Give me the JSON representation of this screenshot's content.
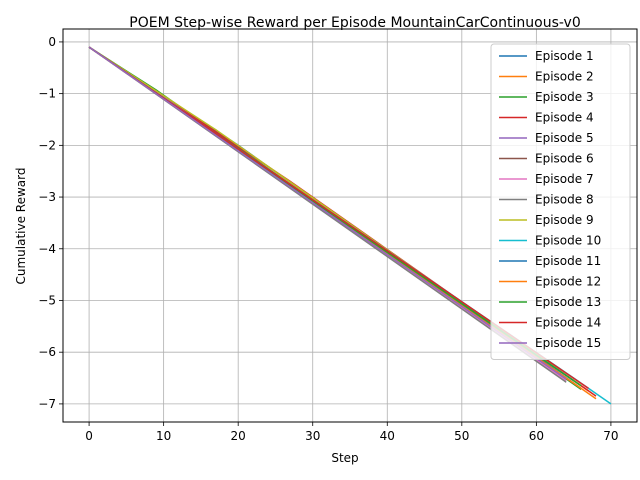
{
  "chart_data": {
    "type": "line",
    "title": "POEM Step-wise Reward per Episode MountainCarContinuous-v0",
    "xlabel": "Step",
    "ylabel": "Cumulative Reward",
    "xlim": [
      -3.5,
      73.5
    ],
    "ylim": [
      -7.35,
      0.25
    ],
    "xticks": [
      0,
      10,
      20,
      30,
      40,
      50,
      60,
      70
    ],
    "yticks": [
      0,
      -1,
      -2,
      -3,
      -4,
      -5,
      -6,
      -7
    ],
    "grid": true,
    "legend_position": "top-right",
    "series": [
      {
        "name": "Episode 1",
        "color": "#1f77b4",
        "x": [
          0,
          20,
          66
        ],
        "y": [
          -0.1,
          -2.0,
          -6.7
        ]
      },
      {
        "name": "Episode 2",
        "color": "#ff7f0e",
        "x": [
          0,
          25,
          67
        ],
        "y": [
          -0.1,
          -2.55,
          -6.75
        ]
      },
      {
        "name": "Episode 3",
        "color": "#2ca02c",
        "x": [
          0,
          9,
          66
        ],
        "y": [
          -0.1,
          -0.93,
          -6.72
        ]
      },
      {
        "name": "Episode 4",
        "color": "#d62728",
        "x": [
          0,
          27,
          68
        ],
        "y": [
          -0.1,
          -2.7,
          -6.85
        ]
      },
      {
        "name": "Episode 5",
        "color": "#9467bd",
        "x": [
          0,
          10,
          64
        ],
        "y": [
          -0.1,
          -1.07,
          -6.55
        ]
      },
      {
        "name": "Episode 6",
        "color": "#8c564b",
        "x": [
          0,
          65
        ],
        "y": [
          -0.1,
          -6.6
        ]
      },
      {
        "name": "Episode 7",
        "color": "#e377c2",
        "x": [
          0,
          64
        ],
        "y": [
          -0.1,
          -6.55
        ]
      },
      {
        "name": "Episode 8",
        "color": "#7f7f7f",
        "x": [
          0,
          64
        ],
        "y": [
          -0.1,
          -6.58
        ]
      },
      {
        "name": "Episode 9",
        "color": "#bcbd22",
        "x": [
          0,
          17,
          66
        ],
        "y": [
          -0.1,
          -1.7,
          -6.65
        ]
      },
      {
        "name": "Episode 10",
        "color": "#17becf",
        "x": [
          0,
          65,
          70
        ],
        "y": [
          -0.1,
          -6.5,
          -7.0
        ]
      },
      {
        "name": "Episode 11",
        "color": "#1f77b4",
        "x": [
          0,
          65
        ],
        "y": [
          -0.1,
          -6.55
        ]
      },
      {
        "name": "Episode 12",
        "color": "#ff7f0e",
        "x": [
          0,
          68
        ],
        "y": [
          -0.1,
          -6.9
        ]
      },
      {
        "name": "Episode 13",
        "color": "#2ca02c",
        "x": [
          0,
          66
        ],
        "y": [
          -0.1,
          -6.65
        ]
      },
      {
        "name": "Episode 14",
        "color": "#d62728",
        "x": [
          0,
          67
        ],
        "y": [
          -0.1,
          -6.7
        ]
      },
      {
        "name": "Episode 15",
        "color": "#9467bd",
        "x": [
          0,
          64
        ],
        "y": [
          -0.1,
          -6.52
        ]
      }
    ]
  }
}
